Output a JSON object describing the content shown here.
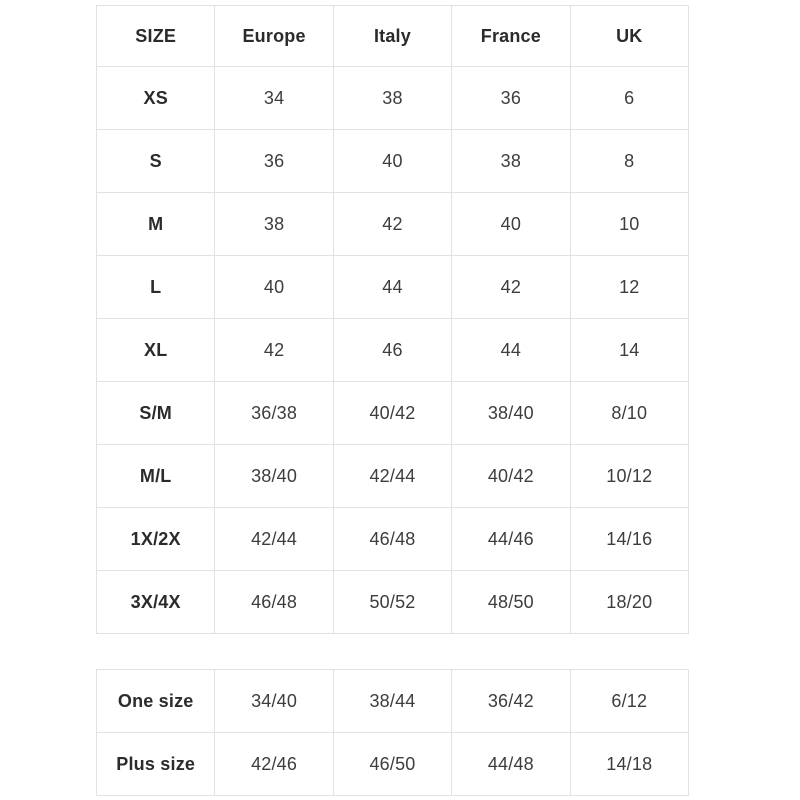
{
  "size_chart": {
    "columns": [
      "SIZE",
      "Europe",
      "Italy",
      "France",
      "UK"
    ],
    "main_table": {
      "rows": [
        [
          "XS",
          "34",
          "38",
          "36",
          "6"
        ],
        [
          "S",
          "36",
          "40",
          "38",
          "8"
        ],
        [
          "M",
          "38",
          "42",
          "40",
          "10"
        ],
        [
          "L",
          "40",
          "44",
          "42",
          "12"
        ],
        [
          "XL",
          "42",
          "46",
          "44",
          "14"
        ],
        [
          "S/M",
          "36/38",
          "40/42",
          "38/40",
          "8/10"
        ],
        [
          "M/L",
          "38/40",
          "42/44",
          "40/42",
          "10/12"
        ],
        [
          "1X/2X",
          "42/44",
          "46/48",
          "44/46",
          "14/16"
        ],
        [
          "3X/4X",
          "46/48",
          "50/52",
          "48/50",
          "18/20"
        ]
      ]
    },
    "extra_table": {
      "rows": [
        [
          "One size",
          "34/40",
          "38/44",
          "36/42",
          "6/12"
        ],
        [
          "Plus size",
          "42/46",
          "46/50",
          "44/48",
          "14/18"
        ]
      ]
    },
    "colors": {
      "background": "#ffffff",
      "border": "#e2e2e2",
      "header_text": "#2b2b2b",
      "cell_text": "#3d3d3d"
    }
  }
}
